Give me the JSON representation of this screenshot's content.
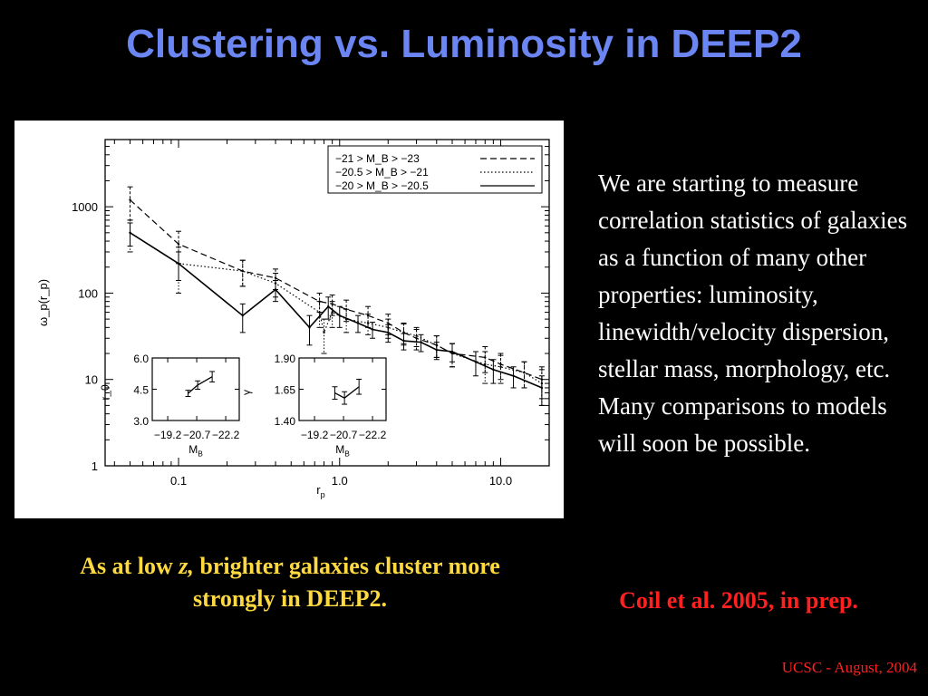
{
  "slide": {
    "title": "Clustering vs. Luminosity in DEEP2",
    "body_text": "We are starting to measure correlation statistics of galaxies as a function of many other properties: luminosity, linewidth/velocity dispersion, stellar mass, morphology, etc.  Many comparisons to models will soon be possible.",
    "caption_before": "As at low ",
    "caption_italic": "z,",
    "caption_after": " brighter galaxies cluster more strongly in DEEP2.",
    "citation": "Coil et al. 2005, in prep.",
    "footer": "UCSC - August, 2004",
    "colors": {
      "background": "#000000",
      "title": "#6b86f2",
      "caption": "#ffd940",
      "citation": "#ff2020",
      "body": "#ffffff"
    }
  },
  "chart_data": [
    {
      "type": "line",
      "xlabel": "r_p",
      "ylabel": "ω_p(r_p)",
      "xscale": "log",
      "yscale": "log",
      "xlim": [
        0.035,
        20
      ],
      "ylim": [
        1,
        6000
      ],
      "x_ticks": [
        "0.1",
        "1.0",
        "10.0"
      ],
      "y_ticks": [
        "1",
        "10",
        "100",
        "1000"
      ],
      "legend": "top-right",
      "grid": false,
      "series": [
        {
          "name": "−21 > M_B > −23",
          "line": "dashed",
          "x": [
            0.05,
            0.1,
            0.25,
            0.4,
            0.75,
            0.9,
            1.1,
            1.5,
            2.0,
            2.5,
            3.0,
            4.0,
            5.0,
            8.0,
            10.0,
            14.0,
            18.0
          ],
          "y": [
            1200,
            370,
            180,
            150,
            80,
            75,
            65,
            55,
            45,
            35,
            30,
            25,
            20,
            18,
            15,
            12,
            10
          ],
          "err": [
            500,
            150,
            60,
            40,
            20,
            20,
            18,
            15,
            12,
            10,
            8,
            7,
            6,
            6,
            5,
            4,
            4
          ]
        },
        {
          "name": "−20.5 > M_B > −21",
          "line": "dotted",
          "x": [
            0.05,
            0.1,
            0.25,
            0.4,
            0.75,
            0.8,
            0.9,
            1.1,
            1.5,
            2.0,
            2.5,
            3.0,
            4.0,
            5.0,
            8.0,
            10.0,
            14.0,
            18.0
          ],
          "y": [
            500,
            220,
            180,
            130,
            60,
            35,
            60,
            50,
            45,
            40,
            35,
            32,
            25,
            20,
            15,
            14,
            12,
            9
          ],
          "err": [
            200,
            120,
            60,
            40,
            20,
            15,
            20,
            15,
            12,
            10,
            9,
            8,
            7,
            6,
            6,
            5,
            4,
            4
          ]
        },
        {
          "name": "−20 > M_B > −20.5",
          "line": "solid",
          "x": [
            0.05,
            0.1,
            0.25,
            0.4,
            0.65,
            0.85,
            1.0,
            1.3,
            1.6,
            2.0,
            2.5,
            3.2,
            4.0,
            5.0,
            7.0,
            9.0,
            12.0,
            18.0
          ],
          "y": [
            500,
            220,
            55,
            110,
            40,
            70,
            55,
            45,
            38,
            35,
            28,
            27,
            22,
            21,
            16,
            13,
            11,
            8
          ],
          "err": [
            150,
            80,
            20,
            30,
            15,
            20,
            15,
            10,
            8,
            8,
            6,
            6,
            5,
            5,
            5,
            4,
            3,
            3
          ]
        }
      ]
    },
    {
      "type": "line",
      "ylabel": "r_0",
      "xlabel": "M_B",
      "x_ticks": [
        "−19.2",
        "−20.7",
        "−22.2"
      ],
      "y_ticks": [
        "6.0",
        "4.5",
        "3.0"
      ],
      "xlim": [
        -18.4,
        -22.9
      ],
      "ylim": [
        3.0,
        6.0
      ],
      "x": [
        -20.25,
        -20.75,
        -21.5
      ],
      "y": [
        4.3,
        4.7,
        5.1
      ],
      "err": [
        0.15,
        0.2,
        0.25
      ]
    },
    {
      "type": "line",
      "ylabel": "γ",
      "xlabel": "M_B",
      "x_ticks": [
        "−19.2",
        "−20.7",
        "−22.2"
      ],
      "y_ticks": [
        "1.90",
        "1.65",
        "1.40"
      ],
      "xlim": [
        -18.4,
        -22.9
      ],
      "ylim": [
        1.4,
        1.9
      ],
      "x": [
        -20.25,
        -20.75,
        -21.5
      ],
      "y": [
        1.62,
        1.58,
        1.67
      ],
      "err": [
        0.05,
        0.05,
        0.06
      ]
    }
  ]
}
